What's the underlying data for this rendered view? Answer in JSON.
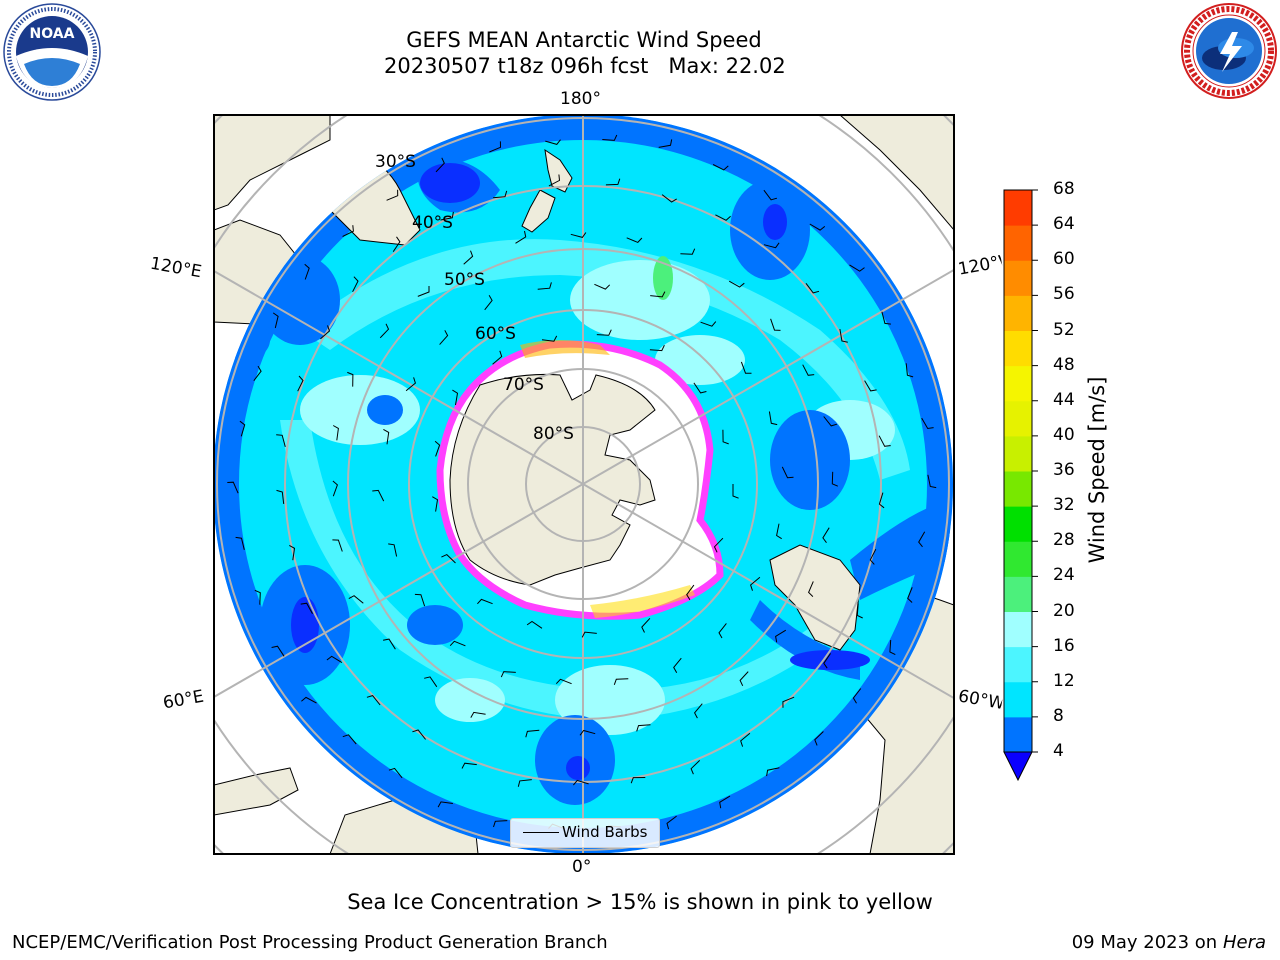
{
  "header": {
    "title": "GEFS MEAN Antarctic Wind Speed",
    "subtitle": "20230507 t18z 096h fcst   Max: 22.02"
  },
  "logos": {
    "left": {
      "name": "NOAA",
      "ring_text": "NATIONAL OCEANIC AND ATMOSPHERIC ADMINISTRATION · U.S. DEPARTMENT OF COMMERCE"
    },
    "right": {
      "name": "NATIONAL WEATHER SERVICE"
    }
  },
  "map": {
    "projection": "south-polar-stereographic",
    "longitude_labels": {
      "top": "180°",
      "upper_left": "120°E",
      "upper_right": "120°W",
      "lower_left": "60°E",
      "lower_right": "60°W",
      "bottom": "0°"
    },
    "latitude_labels": [
      "30°S",
      "40°S",
      "50°S",
      "60°S",
      "70°S",
      "80°S"
    ],
    "legend_label": "Wind Barbs",
    "colors": {
      "land": "#eeecdc",
      "ice_shelf": "#ffffff",
      "sea_ice_edge": "#ff40ff",
      "gridline": "#b4b4b4"
    }
  },
  "colorbar": {
    "label": "Wind Speed [m/s]",
    "ticks": [
      "4",
      "8",
      "12",
      "16",
      "20",
      "24",
      "28",
      "32",
      "36",
      "40",
      "44",
      "48",
      "52",
      "56",
      "60",
      "64",
      "68"
    ],
    "colors": [
      "#0074ff",
      "#00e5ff",
      "#4cf5ff",
      "#a0ffff",
      "#4cf07c",
      "#30e830",
      "#00e000",
      "#78e800",
      "#c8f000",
      "#e6f200",
      "#f5f500",
      "#ffdc00",
      "#ffb400",
      "#ff8c00",
      "#ff6400",
      "#ff3c00",
      "#ff0000"
    ],
    "extend_color": "#0a00ff"
  },
  "caption": "Sea Ice Concentration > 15% is shown in pink to yellow",
  "footer": {
    "left": "NCEP/EMC/Verification Post Processing Product Generation Branch",
    "right_date": "09 May 2023 on",
    "right_machine": "Hera"
  }
}
